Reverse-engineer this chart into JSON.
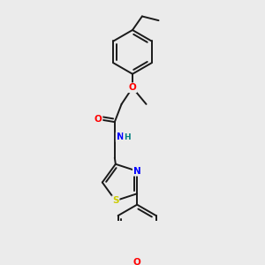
{
  "background_color": "#ebebeb",
  "bond_color": "#1a1a1a",
  "atom_colors": {
    "O": "#ff0000",
    "N": "#0000ff",
    "S": "#cccc00",
    "H": "#008080",
    "C": "#1a1a1a"
  },
  "figsize": [
    3.0,
    3.0
  ],
  "dpi": 100,
  "lw": 1.4
}
